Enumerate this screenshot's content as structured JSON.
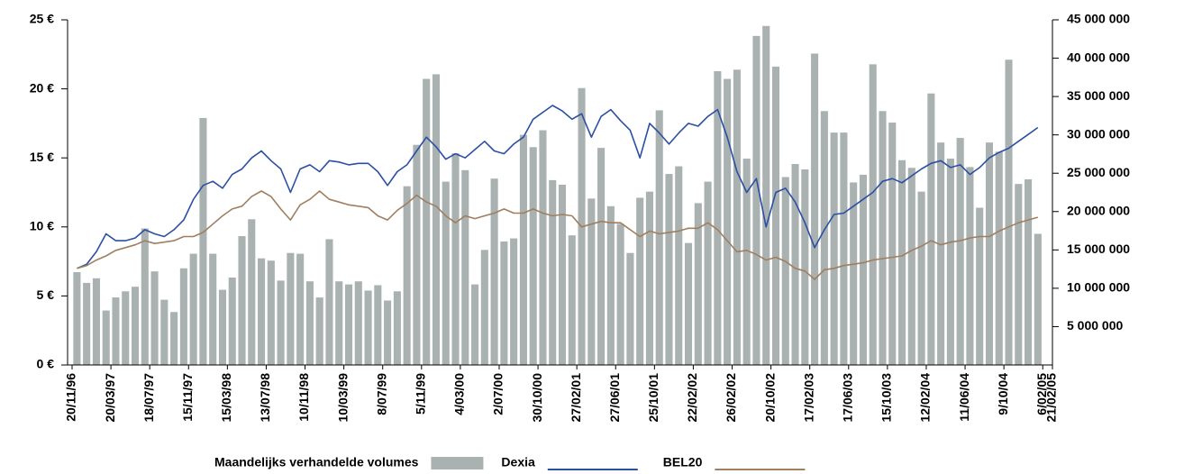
{
  "chart_data": {
    "type": "combo",
    "x": [
      0.5,
      1.5,
      2.5,
      3.5,
      4.5,
      5.5,
      6.5,
      7.5,
      8.5,
      9.5,
      10.5,
      11.5,
      12.5,
      13.5,
      14.5,
      15.5,
      16.5,
      17.5,
      18.5,
      19.5,
      20.5,
      21.5,
      22.5,
      23.5,
      24.5,
      25.5,
      26.5,
      27.5,
      28.5,
      29.5,
      30.5,
      31.5,
      32.5,
      33.5,
      34.5,
      35.5,
      36.5,
      37.5,
      38.5,
      39.5,
      40.5,
      41.5,
      42.5,
      43.5,
      44.5,
      45.5,
      46.5,
      47.5,
      48.5,
      49.5,
      50.5,
      51.5,
      52.5,
      53.5,
      54.5,
      55.5,
      56.5,
      57.5,
      58.5,
      59.5,
      60.5,
      61.5,
      62.5,
      63.5,
      64.5,
      65.5,
      66.5,
      67.5,
      68.5,
      69.5,
      70.5,
      71.5,
      72.5,
      73.5,
      74.5,
      75.5,
      76.5,
      77.5,
      78.5,
      79.5,
      80.5,
      81.5,
      82.5,
      83.5,
      84.5,
      85.5,
      86.5,
      87.5,
      88.5,
      89.5,
      90.5,
      91.5,
      92.5,
      93.5,
      94.5,
      95.5,
      96.5,
      97.5,
      98.5,
      99.5
    ],
    "xlim": [
      0,
      101
    ],
    "xticks": [
      {
        "value": 0,
        "label": "20/11/96"
      },
      {
        "value": 4,
        "label": "20/03/97"
      },
      {
        "value": 8,
        "label": "18/07/97"
      },
      {
        "value": 12,
        "label": "15/11/97"
      },
      {
        "value": 16,
        "label": "15/03/98"
      },
      {
        "value": 20,
        "label": "13/07/98"
      },
      {
        "value": 24,
        "label": "10/11/98"
      },
      {
        "value": 28,
        "label": "10/03/99"
      },
      {
        "value": 32,
        "label": "8/07/99"
      },
      {
        "value": 36,
        "label": "5/11/99"
      },
      {
        "value": 40,
        "label": "4/03/00"
      },
      {
        "value": 44,
        "label": "2/07/00"
      },
      {
        "value": 48,
        "label": "30/10/00"
      },
      {
        "value": 52,
        "label": "27/02/01"
      },
      {
        "value": 56,
        "label": "27/06/01"
      },
      {
        "value": 60,
        "label": "25/10/01"
      },
      {
        "value": 64,
        "label": "22/02/02"
      },
      {
        "value": 68,
        "label": "26/02/02"
      },
      {
        "value": 72,
        "label": "20/10/02"
      },
      {
        "value": 76,
        "label": "17/02/03"
      },
      {
        "value": 80,
        "label": "17/06/03"
      },
      {
        "value": 84,
        "label": "15/10/03"
      },
      {
        "value": 88,
        "label": "12/02/04"
      },
      {
        "value": 92,
        "label": "11/06/04"
      },
      {
        "value": 96,
        "label": "9/10/04"
      },
      {
        "value": 100,
        "label": "6/02/05"
      },
      {
        "value": 101,
        "label": "21/02/05"
      }
    ],
    "ylim": [
      0,
      25
    ],
    "yticks": [
      {
        "value": 0,
        "label": "0 €"
      },
      {
        "value": 5,
        "label": "5 €"
      },
      {
        "value": 10,
        "label": "10 €"
      },
      {
        "value": 15,
        "label": "15 €"
      },
      {
        "value": 20,
        "label": "20 €"
      },
      {
        "value": 25,
        "label": "25 €"
      }
    ],
    "y2lim": [
      0,
      45000000
    ],
    "y2ticks": [
      {
        "value": 5000000,
        "label": "5 000 000"
      },
      {
        "value": 10000000,
        "label": "10 000 000"
      },
      {
        "value": 15000000,
        "label": "15 000 000"
      },
      {
        "value": 20000000,
        "label": "20 000 000"
      },
      {
        "value": 25000000,
        "label": "25 000 000"
      },
      {
        "value": 30000000,
        "label": "30 000 000"
      },
      {
        "value": 35000000,
        "label": "35 000 000"
      },
      {
        "value": 40000000,
        "label": "40 000 000"
      },
      {
        "value": 45000000,
        "label": "45 000 000"
      }
    ],
    "series": [
      {
        "name": "Maandelijks verhandelde volumes",
        "kind": "bar",
        "axis": "y2",
        "color": "#a9b1b1",
        "values": [
          12100000,
          10700000,
          11300000,
          7100000,
          8800000,
          9600000,
          10200000,
          17800000,
          12200000,
          8500000,
          6900000,
          12600000,
          14500000,
          32200000,
          14500000,
          9800000,
          11400000,
          16800000,
          19000000,
          13900000,
          13600000,
          11000000,
          14600000,
          14500000,
          10900000,
          8800000,
          16400000,
          10900000,
          10500000,
          10900000,
          9700000,
          10400000,
          8400000,
          9600000,
          23300000,
          28700000,
          37300000,
          37900000,
          23900000,
          27600000,
          25400000,
          10500000,
          15000000,
          24300000,
          16100000,
          16500000,
          30000000,
          28400000,
          30600000,
          24100000,
          23500000,
          16900000,
          36100000,
          21700000,
          28300000,
          20700000,
          18400000,
          14600000,
          21800000,
          22600000,
          33200000,
          24900000,
          25900000,
          15900000,
          21100000,
          23900000,
          38300000,
          37300000,
          38500000,
          26900000,
          42900000,
          44200000,
          38900000,
          24500000,
          26200000,
          25500000,
          40600000,
          33100000,
          30300000,
          30300000,
          23800000,
          24800000,
          39200000,
          33100000,
          31600000,
          26700000,
          25700000,
          22600000,
          35400000,
          29000000,
          26900000,
          29600000,
          25800000,
          20500000,
          29000000,
          27800000,
          39800000,
          23600000,
          24200000,
          17100000
        ]
      },
      {
        "name": "Dexia",
        "kind": "line",
        "color": "#2b4fa3",
        "values": [
          7.0,
          7.3,
          8.2,
          9.5,
          9.0,
          9.0,
          9.2,
          9.8,
          9.5,
          9.3,
          9.8,
          10.5,
          12.0,
          13.0,
          13.3,
          12.8,
          13.8,
          14.2,
          15.0,
          15.5,
          14.8,
          14.2,
          12.5,
          14.2,
          14.5,
          14.0,
          14.8,
          14.7,
          14.5,
          14.6,
          14.6,
          14.0,
          13.0,
          14.0,
          14.5,
          15.5,
          16.5,
          15.8,
          14.9,
          15.3,
          15.0,
          15.6,
          16.2,
          15.5,
          15.3,
          16.0,
          16.5,
          17.8,
          18.3,
          18.8,
          18.4,
          17.8,
          18.2,
          16.5,
          18.0,
          18.5,
          17.7,
          17.0,
          15.0,
          17.5,
          16.8,
          16.0,
          16.8,
          17.5,
          17.3,
          18.0,
          18.5,
          16.5,
          14.0,
          12.5,
          13.5,
          10.0,
          12.5,
          12.8,
          11.8,
          10.3,
          8.5,
          9.8,
          10.9,
          11.0,
          11.5,
          12.0,
          12.5,
          13.3,
          13.5,
          13.2,
          13.7,
          14.2,
          14.6,
          14.8,
          14.3,
          14.5,
          13.8,
          14.3,
          15.0,
          15.4,
          15.7,
          16.2,
          16.7,
          17.2
        ]
      },
      {
        "name": "BEL20",
        "kind": "line",
        "color": "#a07f60",
        "values": [
          7.0,
          7.2,
          7.6,
          7.9,
          8.3,
          8.5,
          8.7,
          9.0,
          8.8,
          8.9,
          9.0,
          9.3,
          9.3,
          9.6,
          10.2,
          10.8,
          11.3,
          11.5,
          12.2,
          12.6,
          12.2,
          11.3,
          10.5,
          11.6,
          12.0,
          12.6,
          12.0,
          11.8,
          11.6,
          11.5,
          11.4,
          10.8,
          10.5,
          11.2,
          11.7,
          12.3,
          11.8,
          11.5,
          10.8,
          10.3,
          10.8,
          10.6,
          10.8,
          11.0,
          11.3,
          11.0,
          11.0,
          11.3,
          11.0,
          10.8,
          10.9,
          10.8,
          10.0,
          10.2,
          10.4,
          10.3,
          10.3,
          9.8,
          9.3,
          9.7,
          9.5,
          9.6,
          9.7,
          9.9,
          9.9,
          10.3,
          9.8,
          9.0,
          8.2,
          8.3,
          8.0,
          7.6,
          7.8,
          7.5,
          7.0,
          6.8,
          6.2,
          6.9,
          7.0,
          7.2,
          7.3,
          7.4,
          7.6,
          7.7,
          7.8,
          7.9,
          8.3,
          8.6,
          9.0,
          8.7,
          8.9,
          9.0,
          9.2,
          9.3,
          9.3,
          9.7,
          10.0,
          10.3,
          10.5,
          10.7
        ]
      }
    ]
  }
}
